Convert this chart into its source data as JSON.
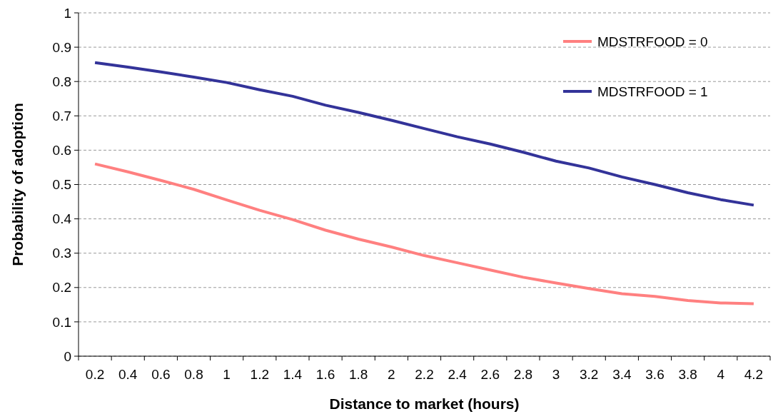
{
  "chart_data": {
    "type": "line",
    "xlabel": "Distance to market (hours)",
    "ylabel": "Probability of adoption",
    "categories": [
      "0.2",
      "0.4",
      "0.6",
      "0.8",
      "1",
      "1.2",
      "1.4",
      "1.6",
      "1.8",
      "2",
      "2.2",
      "2.4",
      "2.6",
      "2.8",
      "3",
      "3.2",
      "3.4",
      "3.6",
      "3.8",
      "4",
      "4.2"
    ],
    "series": [
      {
        "name": "MDSTRFOOD = 0",
        "color": "#ff8080",
        "values": [
          0.56,
          0.537,
          0.512,
          0.486,
          0.455,
          0.425,
          0.398,
          0.367,
          0.341,
          0.318,
          0.293,
          0.272,
          0.251,
          0.23,
          0.213,
          0.197,
          0.182,
          0.174,
          0.162,
          0.155,
          0.153
        ]
      },
      {
        "name": "MDSTRFOOD = 1",
        "color": "#333399",
        "values": [
          0.855,
          0.842,
          0.828,
          0.813,
          0.797,
          0.776,
          0.757,
          0.731,
          0.71,
          0.687,
          0.663,
          0.639,
          0.618,
          0.594,
          0.568,
          0.548,
          0.522,
          0.5,
          0.476,
          0.456,
          0.44
        ]
      }
    ],
    "ylim": [
      0,
      1
    ],
    "yticks": [
      0,
      0.1,
      0.2,
      0.3,
      0.4,
      0.5,
      0.6,
      0.7,
      0.8,
      0.9,
      1
    ],
    "grid": "y",
    "legend": "top right",
    "marker": "none",
    "line_style": "solid"
  }
}
